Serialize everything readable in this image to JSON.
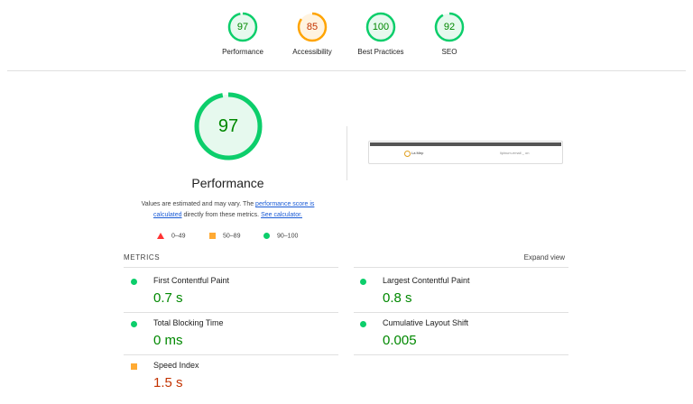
{
  "categories": [
    {
      "score": "97",
      "fraction": 0.97,
      "label": "Performance",
      "status": "pass"
    },
    {
      "score": "85",
      "fraction": 0.85,
      "label": "Accessibility",
      "status": "average"
    },
    {
      "score": "100",
      "fraction": 1.0,
      "label": "Best Practices",
      "status": "pass"
    },
    {
      "score": "92",
      "fraction": 0.92,
      "label": "SEO",
      "status": "pass"
    }
  ],
  "performance": {
    "score": "97",
    "fraction": 0.97,
    "title": "Performance",
    "note_prefix": "Values are estimated and may vary. The ",
    "note_link1": "performance score is calculated",
    "note_middle": " directly from these metrics. ",
    "note_link2": "See calculator."
  },
  "legend": {
    "fail": "0–49",
    "average": "50–89",
    "pass": "90–100"
  },
  "screenshot": {
    "logo_text": "La Mep",
    "right_text": "lipinum-email _ on"
  },
  "metrics": {
    "label": "METRICS",
    "expand_label": "Expand view",
    "items": [
      {
        "name": "First Contentful Paint",
        "value": "0.7 s",
        "status": "pass"
      },
      {
        "name": "Largest Contentful Paint",
        "value": "0.8 s",
        "status": "pass"
      },
      {
        "name": "Total Blocking Time",
        "value": "0 ms",
        "status": "pass"
      },
      {
        "name": "Cumulative Layout Shift",
        "value": "0.005",
        "status": "pass"
      },
      {
        "name": "Speed Index",
        "value": "1.5 s",
        "status": "average"
      }
    ]
  },
  "colors": {
    "pass": "#0cce6b",
    "pass_text": "#008800",
    "average": "#ffa400",
    "average_text": "#c33300",
    "fail": "#ff3333",
    "link": "#1a5bd6"
  }
}
